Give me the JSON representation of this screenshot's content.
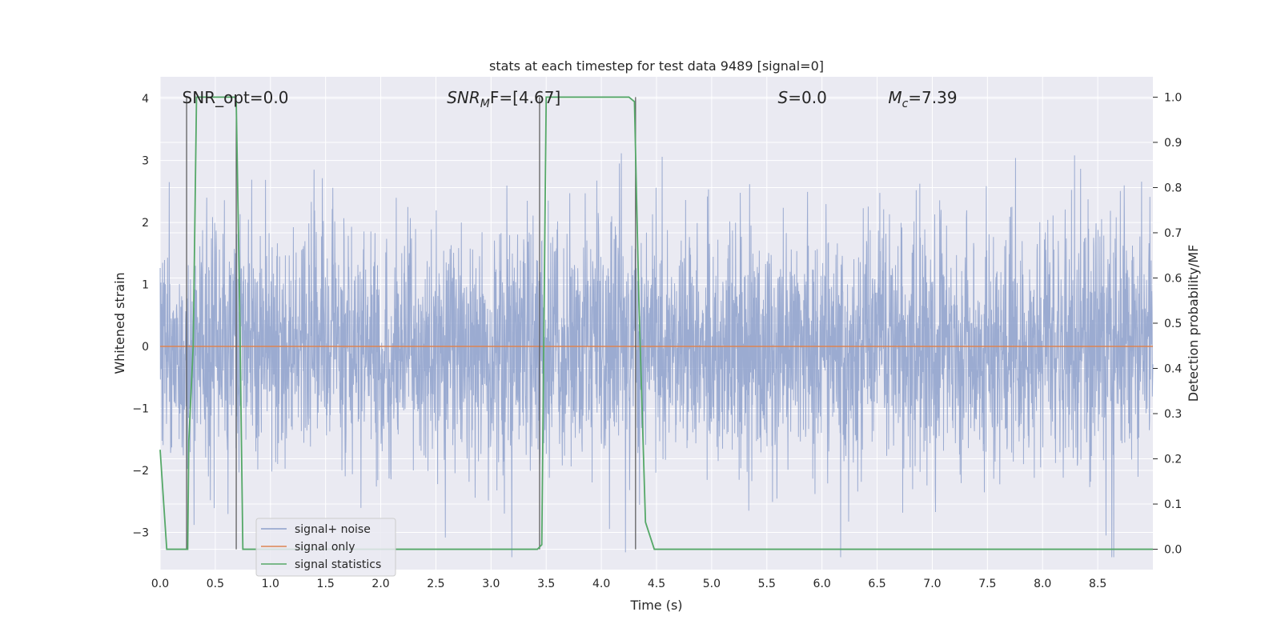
{
  "chart_data": {
    "type": "line",
    "title": "stats at each timestep for test data 9489 [signal=0]",
    "xlabel": "Time (s)",
    "ylabel_left": "Whitened strain",
    "ylabel_right": "Detection probability/MF",
    "xlim": [
      0.0,
      9.0
    ],
    "ylim_left": [
      -3.6,
      4.35
    ],
    "ylim_right": [
      -0.045,
      1.045
    ],
    "xticks": [
      "0.0",
      "0.5",
      "1.0",
      "1.5",
      "2.0",
      "2.5",
      "3.0",
      "3.5",
      "4.0",
      "4.5",
      "5.0",
      "5.5",
      "6.0",
      "6.5",
      "7.0",
      "7.5",
      "8.0",
      "8.5"
    ],
    "xtick_values": [
      0.0,
      0.5,
      1.0,
      1.5,
      2.0,
      2.5,
      3.0,
      3.5,
      4.0,
      4.5,
      5.0,
      5.5,
      6.0,
      6.5,
      7.0,
      7.5,
      8.0,
      8.5
    ],
    "yticks_left": [
      "−3",
      "−2",
      "−1",
      "0",
      "1",
      "2",
      "3",
      "4"
    ],
    "ytick_values_left": [
      -3,
      -2,
      -1,
      0,
      1,
      2,
      3,
      4
    ],
    "yticks_right": [
      "0.0",
      "0.1",
      "0.2",
      "0.3",
      "0.4",
      "0.5",
      "0.6",
      "0.7",
      "0.8",
      "0.9",
      "1.0"
    ],
    "ytick_values_right": [
      0.0,
      0.1,
      0.2,
      0.3,
      0.4,
      0.5,
      0.6,
      0.7,
      0.8,
      0.9,
      1.0
    ],
    "grid": true,
    "legend_position": "lower-left",
    "annotations": [
      {
        "text": "SNR_opt=0.0",
        "x": 0.2,
        "y": 4.0
      },
      {
        "text": "SNR",
        "sub": "M",
        "rest": "F=[4.67]",
        "x": 2.6,
        "y": 4.0
      },
      {
        "text": "S",
        "rest": "=0.0",
        "x": 5.6,
        "y": 4.0
      },
      {
        "text": "M",
        "sub": "c",
        "rest": "=7.39",
        "x": 6.6,
        "y": 4.0
      }
    ],
    "series": [
      {
        "name": "signal+ noise",
        "axis": "left",
        "color": "#8da0cb",
        "description": "whitened noisy strain, ~N(0,1) noise sampled over 0-9 s",
        "seed": 9489,
        "n_samples": 3600,
        "std": 0.95
      },
      {
        "name": "signal only",
        "axis": "left",
        "color": "#dd8452",
        "x": [
          0.0,
          9.0
        ],
        "y": [
          0.0,
          0.0
        ]
      },
      {
        "name": "signal statistics",
        "axis": "right",
        "color": "#55a868",
        "x": [
          0.0,
          0.06,
          0.25,
          0.26,
          0.3,
          0.33,
          0.68,
          0.69,
          0.72,
          0.75,
          3.42,
          3.46,
          3.5,
          4.25,
          4.3,
          4.34,
          4.4,
          4.48,
          4.6,
          9.0
        ],
        "y": [
          0.22,
          0.0,
          0.0,
          0.24,
          0.45,
          1.0,
          1.0,
          0.99,
          0.55,
          0.0,
          0.0,
          0.01,
          1.0,
          1.0,
          0.99,
          0.55,
          0.06,
          0.0,
          0.0,
          0.0
        ]
      }
    ],
    "vertical_markers": [
      {
        "x": 0.24,
        "top": 1.0,
        "bottom": 0.0,
        "color": "#555555"
      },
      {
        "x": 0.69,
        "top": 1.0,
        "bottom": 0.0,
        "color": "#555555"
      },
      {
        "x": 3.44,
        "top": 1.0,
        "bottom": 0.0,
        "color": "#555555"
      },
      {
        "x": 4.31,
        "top": 1.0,
        "bottom": 0.0,
        "color": "#555555"
      }
    ],
    "colors": {
      "plot_background": "#eaeaf2",
      "grid": "#ffffff",
      "text": "#262626"
    }
  }
}
